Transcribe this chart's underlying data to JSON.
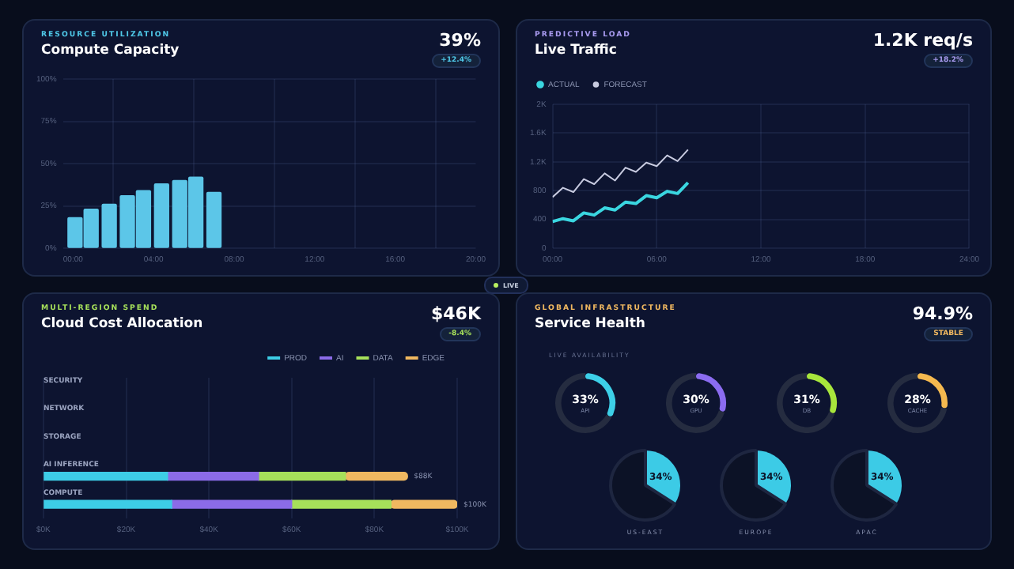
{
  "chart_data": [
    {
      "type": "bar",
      "subtitle": "RESOURCE UTILIZATION",
      "title": "Compute Capacity",
      "annotations": [
        "39%",
        "+12.4%"
      ],
      "x": [
        0.1,
        0.9,
        1.8,
        2.7,
        3.5,
        4.4,
        5.3,
        6.1,
        7.0
      ],
      "values": [
        18,
        23,
        26,
        31,
        34,
        38,
        40,
        42,
        33
      ],
      "color": "#5cc6e8",
      "xlim": [
        -0.5,
        20
      ],
      "xticks": [
        {
          "value": 0,
          "label": "00:00"
        },
        {
          "value": 4,
          "label": "04:00"
        },
        {
          "value": 8,
          "label": "08:00"
        },
        {
          "value": 12,
          "label": "12:00"
        },
        {
          "value": 16,
          "label": "16:00"
        },
        {
          "value": 20,
          "label": "20:00"
        }
      ],
      "ylim": [
        0,
        100
      ],
      "yticks": [
        {
          "value": 0,
          "label": "0%"
        },
        {
          "value": 25,
          "label": "25%"
        },
        {
          "value": 50,
          "label": "50%"
        },
        {
          "value": 75,
          "label": "75%"
        },
        {
          "value": 100,
          "label": "100%"
        }
      ],
      "grid": true
    },
    {
      "type": "line",
      "subtitle": "PREDICTIVE LOAD",
      "title": "Live Traffic",
      "annotations": [
        "1.2K req/s",
        "+18.2%"
      ],
      "x": [
        0,
        0.6,
        1.2,
        1.8,
        2.4,
        3,
        3.6,
        4.2,
        4.8,
        5.4,
        6,
        6.6,
        7.2,
        7.8
      ],
      "series": [
        {
          "name": "ACTUAL",
          "color": "#3ad6e0",
          "values": [
            370,
            410,
            380,
            490,
            460,
            560,
            530,
            640,
            620,
            730,
            700,
            790,
            760,
            910
          ]
        },
        {
          "name": "FORECAST",
          "color": "#c8cbe0",
          "values": [
            710,
            840,
            780,
            960,
            890,
            1040,
            940,
            1120,
            1060,
            1190,
            1140,
            1290,
            1210,
            1370
          ]
        }
      ],
      "xlim": [
        0,
        24
      ],
      "xticks": [
        {
          "value": 0,
          "label": "00:00"
        },
        {
          "value": 6,
          "label": "06:00"
        },
        {
          "value": 12,
          "label": "12:00"
        },
        {
          "value": 18,
          "label": "18:00"
        },
        {
          "value": 24,
          "label": "24:00"
        }
      ],
      "ylim": [
        0,
        2000
      ],
      "yticks": [
        0,
        400,
        800,
        {
          "value": 1200,
          "label": "1.2K"
        },
        {
          "value": 1600,
          "label": "1.6K"
        },
        {
          "value": 2000,
          "label": "2K"
        }
      ],
      "grid": true,
      "legend": "top left",
      "marker": "none"
    },
    {
      "type": "bar",
      "orientation": "horizontal",
      "stacked": true,
      "subtitle": "MULTI-REGION SPEND",
      "title": "Cloud Cost Allocation",
      "annotations": [
        "$46K",
        "-8.4%"
      ],
      "categories": [
        "SECURITY",
        "NETWORK",
        "STORAGE",
        "AI INFERENCE",
        "COMPUTE"
      ],
      "series": [
        {
          "name": "PROD",
          "color": "#3dcde6",
          "values": [
            null,
            null,
            null,
            30,
            31
          ]
        },
        {
          "name": "AI",
          "color": "#8b6be8",
          "values": [
            null,
            null,
            null,
            22,
            29
          ]
        },
        {
          "name": "DATA",
          "color": "#a6e05a",
          "values": [
            null,
            null,
            null,
            21,
            24
          ]
        },
        {
          "name": "EDGE",
          "color": "#f0b860",
          "values": [
            null,
            null,
            null,
            15,
            16
          ]
        }
      ],
      "totals": [
        null,
        null,
        null,
        "$88K",
        "$100K"
      ],
      "xlim": [
        0,
        100
      ],
      "xticks": [
        {
          "value": 0,
          "label": "$0K"
        },
        {
          "value": 20,
          "label": "$20K"
        },
        {
          "value": 40,
          "label": "$40K"
        },
        {
          "value": 60,
          "label": "$60K"
        },
        {
          "value": 80,
          "label": "$80K"
        },
        {
          "value": 100,
          "label": "$100K"
        }
      ],
      "grid": "x",
      "legend": "top right"
    },
    {
      "type": "other",
      "subtitle": "GLOBAL INFRASTRUCTURE",
      "title": "Service Health",
      "annotations": [
        "94.9%",
        "STABLE",
        "LIVE AVAILABILITY",
        "LIVE"
      ]
    },
    {
      "type": "donut",
      "title": "API",
      "categories": [
        null,
        null
      ],
      "values": [
        33,
        67
      ],
      "colors": [
        "#3dd0e8",
        "#252c40"
      ],
      "value_labels": [
        "33%",
        null
      ]
    },
    {
      "type": "donut",
      "title": "GPU",
      "categories": [
        null,
        null
      ],
      "values": [
        30,
        70
      ],
      "colors": [
        "#8b6cf0",
        "#252c40"
      ],
      "value_labels": [
        "30%",
        null
      ]
    },
    {
      "type": "donut",
      "title": "DB",
      "categories": [
        null,
        null
      ],
      "values": [
        31,
        69
      ],
      "colors": [
        "#a8e63c",
        "#252c40"
      ],
      "value_labels": [
        "31%",
        null
      ]
    },
    {
      "type": "donut",
      "title": "CACHE",
      "categories": [
        null,
        null
      ],
      "values": [
        28,
        72
      ],
      "colors": [
        "#f5b94f",
        "#252c40"
      ],
      "value_labels": [
        "28%",
        null
      ]
    },
    {
      "type": "pie",
      "title": "US-EAST",
      "categories": [
        null,
        null
      ],
      "values": [
        34,
        66
      ],
      "colors": [
        "#3ccbe6",
        "#0c1226"
      ],
      "value_labels": [
        "34%",
        null
      ]
    },
    {
      "type": "pie",
      "title": "EUROPE",
      "categories": [
        null,
        null
      ],
      "values": [
        34,
        66
      ],
      "colors": [
        "#3ccbe6",
        "#0c1226"
      ],
      "value_labels": [
        "34%",
        null
      ]
    },
    {
      "type": "pie",
      "title": "APAC",
      "categories": [
        null,
        null
      ],
      "values": [
        34,
        66
      ],
      "colors": [
        "#3ccbe6",
        "#0c1226"
      ],
      "value_labels": [
        "34%",
        null
      ]
    }
  ]
}
